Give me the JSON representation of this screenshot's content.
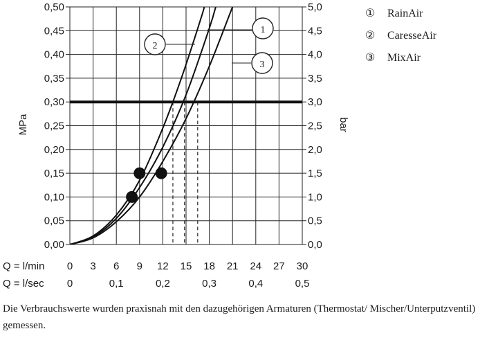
{
  "chart_data": {
    "type": "line",
    "y_left": {
      "label": "MPa",
      "range": [
        0,
        0.5
      ],
      "ticks": [
        "0,00",
        "0,05",
        "0,10",
        "0,15",
        "0,20",
        "0,25",
        "0,30",
        "0,35",
        "0,40",
        "0,45",
        "0,50"
      ]
    },
    "y_right": {
      "label": "bar",
      "range": [
        0,
        5
      ],
      "ticks": [
        "0,0",
        "0,5",
        "1,0",
        "1,5",
        "2,0",
        "2,5",
        "3,0",
        "3,5",
        "4,0",
        "4,5",
        "5,0"
      ]
    },
    "x_axis": {
      "range": [
        0,
        30
      ],
      "rows": [
        {
          "label": "Q = l/min",
          "ticks": [
            "0",
            "3",
            "6",
            "9",
            "12",
            "15",
            "18",
            "21",
            "24",
            "27",
            "30"
          ],
          "values": [
            0,
            3,
            6,
            9,
            12,
            15,
            18,
            21,
            24,
            27,
            30
          ]
        },
        {
          "label": "Q = l/sec",
          "ticks": [
            "0",
            "0,1",
            "0,2",
            "0,3",
            "0,4",
            "0,5"
          ],
          "values": [
            0,
            6,
            12,
            18,
            24,
            30
          ]
        }
      ]
    },
    "reference_line": {
      "y": 0.3
    },
    "series": [
      {
        "marker": "1",
        "name": "RainAir",
        "points": [
          [
            0,
            0
          ],
          [
            3,
            0.016
          ],
          [
            6,
            0.055
          ],
          [
            9,
            0.12
          ],
          [
            12,
            0.205
          ],
          [
            15,
            0.315
          ],
          [
            18,
            0.455
          ],
          [
            19,
            0.51
          ]
        ],
        "dot": [
          9,
          0.15
        ],
        "dashed_x": 14.8
      },
      {
        "marker": "2",
        "name": "CaresseAir",
        "points": [
          [
            0,
            0
          ],
          [
            3,
            0.018
          ],
          [
            6,
            0.062
          ],
          [
            9,
            0.135
          ],
          [
            12,
            0.245
          ],
          [
            14.5,
            0.355
          ],
          [
            17,
            0.48
          ],
          [
            17.5,
            0.51
          ]
        ],
        "dot": [
          8,
          0.1
        ],
        "dashed_x": 13.3
      },
      {
        "marker": "3",
        "name": "MixAir",
        "points": [
          [
            0,
            0
          ],
          [
            3,
            0.014
          ],
          [
            6,
            0.048
          ],
          [
            9,
            0.1
          ],
          [
            12,
            0.175
          ],
          [
            15,
            0.265
          ],
          [
            18,
            0.375
          ],
          [
            21,
            0.5
          ],
          [
            21.3,
            0.51
          ]
        ],
        "dot": [
          11.8,
          0.15
        ],
        "dashed_x": 16.5
      }
    ],
    "grid": true,
    "legend": "right"
  },
  "legend": {
    "items": [
      {
        "marker": "①",
        "label": "RainAir"
      },
      {
        "marker": "②",
        "label": "CaresseAir"
      },
      {
        "marker": "③",
        "label": "MixAir"
      }
    ]
  },
  "note": "Die Verbrauchswerte wurden praxisnah mit den dazugehörigen Armaturen (Thermostat/ Mischer/Unterputzventil) gemessen."
}
